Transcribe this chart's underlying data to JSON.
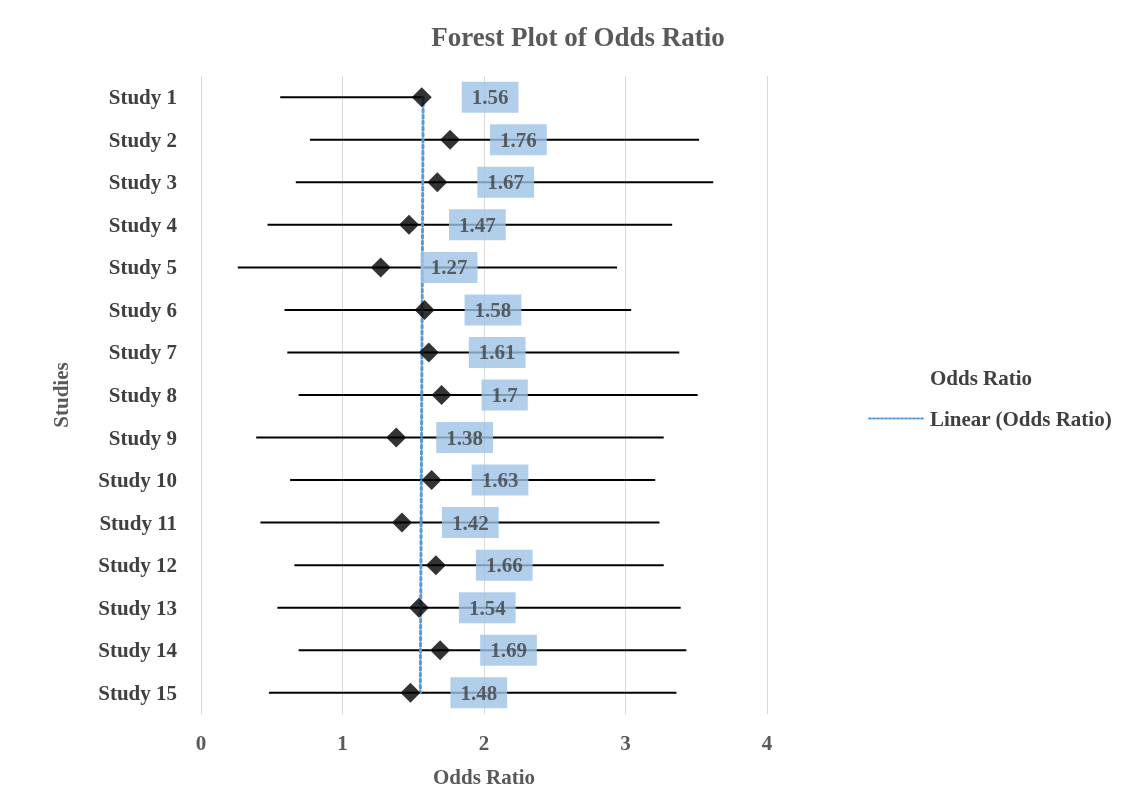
{
  "chart_data": {
    "type": "scatter",
    "title": "Forest Plot of Odds Ratio",
    "xlabel": "Odds Ratio",
    "ylabel": "Studies",
    "orientation": "horizontal",
    "categories": [
      "Study 1",
      "Study 2",
      "Study 3",
      "Study 4",
      "Study 5",
      "Study 6",
      "Study 7",
      "Study 8",
      "Study 9",
      "Study 10",
      "Study 11",
      "Study 12",
      "Study 13",
      "Study 14",
      "Study 15"
    ],
    "series": [
      {
        "name": "Odds Ratio",
        "color": "#000000",
        "marker": "diamond",
        "values": [
          1.56,
          1.76,
          1.67,
          1.47,
          1.27,
          1.58,
          1.61,
          1.7,
          1.38,
          1.63,
          1.42,
          1.66,
          1.54,
          1.69,
          1.48
        ],
        "value_labels": [
          "1.56",
          "1.76",
          "1.67",
          "1.47",
          "1.27",
          "1.58",
          "1.61",
          "1.7",
          "1.38",
          "1.63",
          "1.42",
          "1.66",
          "1.54",
          "1.69",
          "1.48"
        ],
        "errors": [
          [
            0.56,
            1.56
          ],
          [
            0.77,
            3.52
          ],
          [
            0.67,
            3.62
          ],
          [
            0.47,
            3.33
          ],
          [
            0.26,
            2.94
          ],
          [
            0.59,
            3.04
          ],
          [
            0.61,
            3.38
          ],
          [
            0.69,
            3.51
          ],
          [
            0.39,
            3.27
          ],
          [
            0.63,
            3.21
          ],
          [
            0.42,
            3.24
          ],
          [
            0.66,
            3.27
          ],
          [
            0.54,
            3.39
          ],
          [
            0.69,
            3.43
          ],
          [
            0.48,
            3.36
          ]
        ]
      },
      {
        "name": "Linear (Odds Ratio)",
        "type": "line",
        "color": "#5b9bd5",
        "line_style": "dotted",
        "x": [
          "Study 1",
          "Study 15"
        ],
        "values": [
          1.57,
          1.55
        ]
      }
    ],
    "xlim": [
      0,
      4
    ],
    "xticks": [
      0,
      1,
      2,
      3,
      4
    ],
    "grid": "x",
    "legend": "right"
  }
}
